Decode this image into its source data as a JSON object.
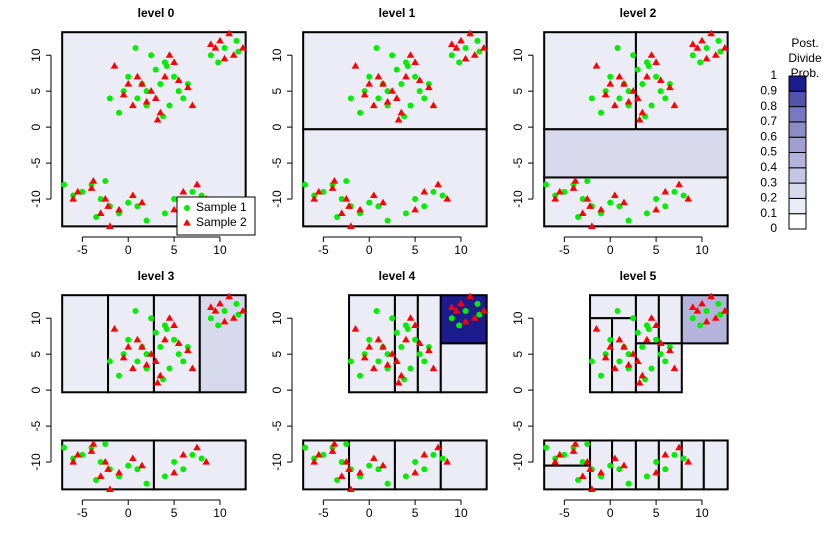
{
  "chart_data": {
    "type": "scatter",
    "xlim": [
      -8.2,
      13.6
    ],
    "ylim": [
      -15,
      14.2
    ],
    "xticks": [
      -5,
      0,
      5,
      10
    ],
    "yticks": [
      -10,
      -5,
      0,
      5,
      10
    ],
    "legend": "bottomright",
    "series": [
      {
        "name": "Sample 1",
        "color": "#00ee00",
        "marker": "circle",
        "x": [
          2,
          3.5,
          1,
          4.5,
          0,
          5.5,
          2.5,
          -1,
          3,
          6,
          1.5,
          4,
          -0.5,
          5,
          2,
          3.8,
          0.8,
          6.5,
          -2,
          4.2,
          -5,
          -3,
          -2,
          -4,
          -1,
          0,
          -6,
          -3.5,
          1,
          -2.5,
          -7,
          2,
          5,
          7,
          6,
          8,
          4,
          9,
          10.5,
          11.8,
          9.8,
          12
        ],
        "y": [
          5,
          6,
          4,
          3,
          7,
          5,
          10,
          2,
          8,
          4,
          6,
          9,
          5,
          7,
          3,
          1.5,
          11,
          6,
          4,
          8.5,
          -9,
          -10,
          -11,
          -8,
          -12,
          -10.5,
          -9.5,
          -12.5,
          -11,
          -7.5,
          -8,
          -13,
          -10,
          -9,
          -11,
          -9.5,
          -12,
          10,
          11,
          12,
          9,
          10.5
        ]
      },
      {
        "name": "Sample 2",
        "color": "#ff0000",
        "marker": "triangle",
        "x": [
          1.5,
          3,
          4,
          0.5,
          2.5,
          5,
          -1.5,
          3.5,
          6.5,
          1,
          4.5,
          2,
          -0.5,
          5.5,
          3.2,
          0,
          7,
          -4,
          -2.5,
          -1,
          -5.5,
          -3,
          0.5,
          -2,
          -6,
          1.5,
          -3.8,
          -2.2,
          6,
          7.5,
          5,
          8.5,
          9.5,
          10,
          11,
          12.5,
          11.5,
          10.5,
          9
        ],
        "y": [
          6,
          4,
          7,
          3,
          5,
          9,
          8.5,
          2,
          5.5,
          7,
          10,
          3.5,
          4.5,
          6.5,
          1,
          6,
          3,
          -8.5,
          -10,
          -11.5,
          -9,
          -12,
          -9.5,
          -13.8,
          -10,
          -10.5,
          -7.5,
          -11,
          -9,
          -8,
          -11.5,
          -10,
          11,
          12,
          13,
          11,
          10,
          9.5,
          11.5
        ]
      }
    ],
    "panels": [
      {
        "title": "level 0",
        "regions": [
          {
            "x": [
              -7.2,
              12.8
            ],
            "y": [
              -13.8,
              13.2
            ],
            "prob": 0.1
          }
        ]
      },
      {
        "title": "level 1",
        "regions": [
          {
            "x": [
              -7.2,
              12.8
            ],
            "y": [
              -0.3,
              13.2
            ],
            "prob": 0.1
          },
          {
            "x": [
              -7.2,
              12.8
            ],
            "y": [
              -13.8,
              -0.3
            ],
            "prob": 0.15
          }
        ]
      },
      {
        "title": "level 2",
        "regions": [
          {
            "x": [
              -7.2,
              2.8
            ],
            "y": [
              -0.3,
              13.2
            ],
            "prob": 0.1
          },
          {
            "x": [
              2.8,
              12.8
            ],
            "y": [
              -0.3,
              13.2
            ],
            "prob": 0.1
          },
          {
            "x": [
              -7.2,
              12.8
            ],
            "y": [
              -7,
              -0.3
            ],
            "prob": 0.2
          },
          {
            "x": [
              -7.2,
              12.8
            ],
            "y": [
              -13.8,
              -7
            ],
            "prob": 0.1
          }
        ]
      },
      {
        "title": "level 3",
        "regions": [
          {
            "x": [
              -7.2,
              -2.2
            ],
            "y": [
              -0.3,
              13.2
            ],
            "prob": 0.1
          },
          {
            "x": [
              -2.2,
              2.8
            ],
            "y": [
              -0.3,
              13.2
            ],
            "prob": 0.1
          },
          {
            "x": [
              2.8,
              7.8
            ],
            "y": [
              -0.3,
              13.2
            ],
            "prob": 0.1
          },
          {
            "x": [
              7.8,
              12.8
            ],
            "y": [
              -0.3,
              13.2
            ],
            "prob": 0.2
          },
          {
            "x": [
              -7.2,
              2.8
            ],
            "y": [
              -13.8,
              -7
            ],
            "prob": 0.1
          },
          {
            "x": [
              2.8,
              12.8
            ],
            "y": [
              -13.8,
              -7
            ],
            "prob": 0.1
          }
        ]
      },
      {
        "title": "level 4",
        "regions": [
          {
            "x": [
              -2.2,
              2.8
            ],
            "y": [
              -0.3,
              13.2
            ],
            "prob": 0.1
          },
          {
            "x": [
              2.8,
              5.3
            ],
            "y": [
              -0.3,
              13.2
            ],
            "prob": 0.1
          },
          {
            "x": [
              5.3,
              7.8
            ],
            "y": [
              -0.3,
              13.2
            ],
            "prob": 0.1
          },
          {
            "x": [
              7.8,
              12.8
            ],
            "y": [
              6.5,
              13.2
            ],
            "prob": 0.95
          },
          {
            "x": [
              7.8,
              12.8
            ],
            "y": [
              -0.3,
              6.5
            ],
            "prob": 0.1
          },
          {
            "x": [
              -7.2,
              -2.2
            ],
            "y": [
              -13.8,
              -7
            ],
            "prob": 0.15
          },
          {
            "x": [
              -2.2,
              2.8
            ],
            "y": [
              -13.8,
              -7
            ],
            "prob": 0.1
          },
          {
            "x": [
              2.8,
              7.8
            ],
            "y": [
              -13.8,
              -7
            ],
            "prob": 0.1
          },
          {
            "x": [
              7.8,
              12.8
            ],
            "y": [
              -13.8,
              -7
            ],
            "prob": 0.1
          }
        ]
      },
      {
        "title": "level 5",
        "regions": [
          {
            "x": [
              -2.2,
              2.8
            ],
            "y": [
              10,
              13.2
            ],
            "prob": 0.1
          },
          {
            "x": [
              2.8,
              5.3
            ],
            "y": [
              6.5,
              13.2
            ],
            "prob": 0.1
          },
          {
            "x": [
              5.3,
              7.8
            ],
            "y": [
              6.5,
              13.2
            ],
            "prob": 0.1
          },
          {
            "x": [
              7.8,
              12.8
            ],
            "y": [
              6.5,
              13.2
            ],
            "prob": 0.45
          },
          {
            "x": [
              -2.2,
              0.2
            ],
            "y": [
              -0.3,
              10
            ],
            "prob": 0.1
          },
          {
            "x": [
              0.2,
              2.8
            ],
            "y": [
              -0.3,
              10
            ],
            "prob": 0.1
          },
          {
            "x": [
              2.8,
              5.3
            ],
            "y": [
              -0.3,
              6.5
            ],
            "prob": 0.1
          },
          {
            "x": [
              5.3,
              7.8
            ],
            "y": [
              -0.3,
              6.5
            ],
            "prob": 0.1
          },
          {
            "x": [
              -7.2,
              -2.2
            ],
            "y": [
              -10.5,
              -7
            ],
            "prob": 0.1
          },
          {
            "x": [
              -7.2,
              -2.2
            ],
            "y": [
              -13.8,
              -10.5
            ],
            "prob": 0.1
          },
          {
            "x": [
              -2.2,
              0.2
            ],
            "y": [
              -13.8,
              -7
            ],
            "prob": 0.1
          },
          {
            "x": [
              0.2,
              2.8
            ],
            "y": [
              -13.8,
              -7
            ],
            "prob": 0.1
          },
          {
            "x": [
              2.8,
              5.3
            ],
            "y": [
              -13.8,
              -7
            ],
            "prob": 0.1
          },
          {
            "x": [
              5.3,
              7.8
            ],
            "y": [
              -13.8,
              -7
            ],
            "prob": 0.1
          },
          {
            "x": [
              7.8,
              10.2
            ],
            "y": [
              -13.8,
              -7
            ],
            "prob": 0.1
          },
          {
            "x": [
              10.2,
              12.8
            ],
            "y": [
              -13.8,
              -7
            ],
            "prob": 0.1
          }
        ]
      }
    ],
    "colorbar": {
      "title": [
        "Post.",
        "Divide",
        "Prob."
      ],
      "ticks": [
        0,
        0.1,
        0.2,
        0.3,
        0.4,
        0.5,
        0.6,
        0.7,
        0.8,
        0.9,
        1
      ],
      "colors": [
        "#ffffff",
        "#ececf6",
        "#d9d9ed",
        "#c6c6e4",
        "#b3b3db",
        "#9f9fd2",
        "#8c8cc9",
        "#7979c0",
        "#5353ad",
        "#1c1c8c"
      ]
    }
  }
}
